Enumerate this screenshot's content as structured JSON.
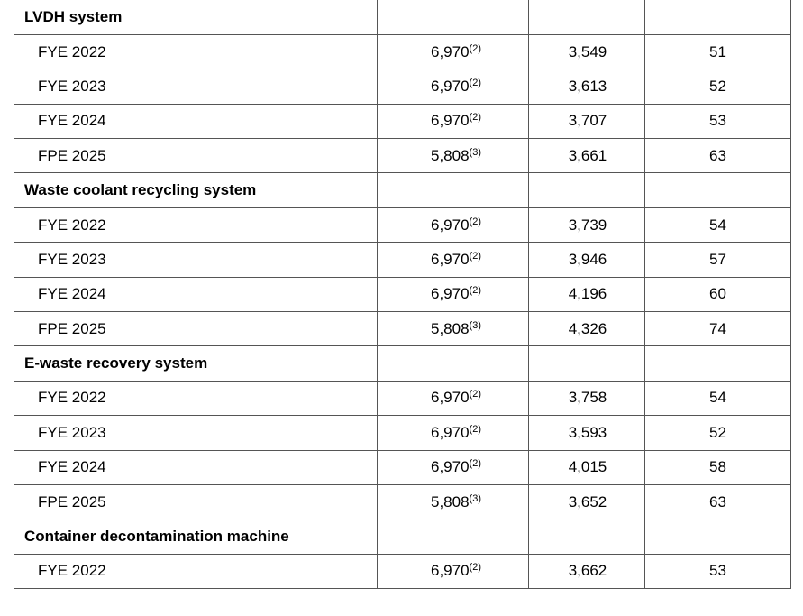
{
  "groups": [
    {
      "title": "LVDH system",
      "rows": [
        {
          "period": "FYE 2022",
          "max": "6,970",
          "note": "(2)",
          "actual": "3,549",
          "util": "51"
        },
        {
          "period": "FYE 2023",
          "max": "6,970",
          "note": "(2)",
          "actual": "3,613",
          "util": "52"
        },
        {
          "period": "FYE 2024",
          "max": "6,970",
          "note": "(2)",
          "actual": "3,707",
          "util": "53"
        },
        {
          "period": "FPE 2025",
          "max": "5,808",
          "note": "(3)",
          "actual": "3,661",
          "util": "63"
        }
      ]
    },
    {
      "title": "Waste coolant recycling system",
      "rows": [
        {
          "period": "FYE 2022",
          "max": "6,970",
          "note": "(2)",
          "actual": "3,739",
          "util": "54"
        },
        {
          "period": "FYE 2023",
          "max": "6,970",
          "note": "(2)",
          "actual": "3,946",
          "util": "57"
        },
        {
          "period": "FYE 2024",
          "max": "6,970",
          "note": "(2)",
          "actual": "4,196",
          "util": "60"
        },
        {
          "period": "FPE 2025",
          "max": "5,808",
          "note": "(3)",
          "actual": "4,326",
          "util": "74"
        }
      ]
    },
    {
      "title": "E-waste recovery system",
      "rows": [
        {
          "period": "FYE 2022",
          "max": "6,970",
          "note": "(2)",
          "actual": "3,758",
          "util": "54"
        },
        {
          "period": "FYE 2023",
          "max": "6,970",
          "note": "(2)",
          "actual": "3,593",
          "util": "52"
        },
        {
          "period": "FYE 2024",
          "max": "6,970",
          "note": "(2)",
          "actual": "4,015",
          "util": "58"
        },
        {
          "period": "FPE 2025",
          "max": "5,808",
          "note": "(3)",
          "actual": "3,652",
          "util": "63"
        }
      ]
    },
    {
      "title": "Container decontamination machine",
      "rows": [
        {
          "period": "FYE 2022",
          "max": "6,970",
          "note": "(2)",
          "actual": "3,662",
          "util": "53"
        }
      ]
    }
  ]
}
